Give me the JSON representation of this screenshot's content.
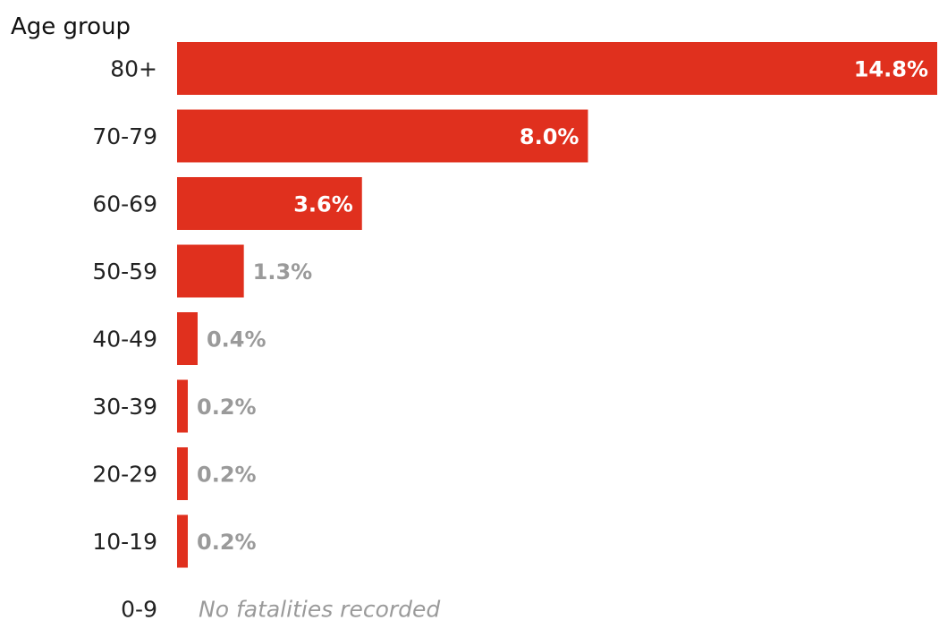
{
  "chart_data": {
    "type": "bar",
    "orientation": "horizontal",
    "ylabel": "Age group",
    "categories": [
      "80+",
      "70-79",
      "60-69",
      "50-59",
      "40-49",
      "30-39",
      "20-29",
      "10-19",
      "0-9"
    ],
    "values": [
      14.8,
      8.0,
      3.6,
      1.3,
      0.4,
      0.2,
      0.2,
      0.2,
      null
    ],
    "value_labels": [
      "14.8%",
      "8.0%",
      "3.6%",
      "1.3%",
      "0.4%",
      "0.2%",
      "0.2%",
      "0.2%",
      ""
    ],
    "notes": [
      "",
      "",
      "",
      "",
      "",
      "",
      "",
      "",
      "No fatalities recorded"
    ],
    "xlim": [
      0,
      14.8
    ],
    "bar_color": "#e0301e",
    "label_inside_color": "#ffffff",
    "label_outside_color": "#9a9a9a",
    "grid": false,
    "legend": "none"
  }
}
